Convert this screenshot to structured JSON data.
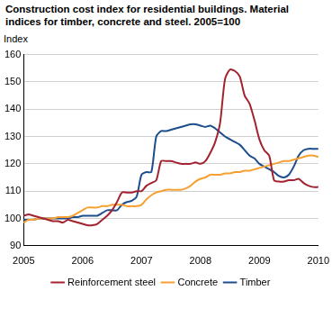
{
  "chart_data": {
    "type": "line",
    "title": "Construction cost index for residential buildings. Material indices for timber, concrete and steel. 2005=100",
    "y_label": "Index",
    "categories": [
      "2005",
      null,
      null,
      null,
      null,
      null,
      null,
      null,
      null,
      null,
      null,
      null,
      "2006",
      null,
      null,
      null,
      null,
      null,
      null,
      null,
      null,
      null,
      null,
      null,
      "2007",
      null,
      null,
      null,
      null,
      null,
      null,
      null,
      null,
      null,
      null,
      null,
      "2008",
      null,
      null,
      null,
      null,
      null,
      null,
      null,
      null,
      null,
      null,
      null,
      "2009",
      null,
      null,
      null,
      null,
      null,
      null,
      null,
      null,
      null,
      null,
      null,
      "2010"
    ],
    "series": [
      {
        "name": "Reinforcement steel",
        "color": "#a3222f",
        "values": [
          101,
          101.5,
          101,
          100.5,
          100,
          99.5,
          99,
          99,
          98.5,
          99.5,
          99,
          98.5,
          98,
          97.5,
          97.5,
          98,
          99.5,
          101,
          103,
          106,
          109.5,
          109.5,
          109.5,
          110,
          110,
          112,
          113,
          114,
          121,
          121,
          121,
          120.5,
          120,
          120,
          120,
          120.5,
          120,
          121,
          124,
          128,
          135,
          151,
          154.5,
          154,
          152,
          145,
          142,
          136,
          129,
          125,
          123,
          114,
          113.5,
          113.5,
          114,
          114,
          114.5,
          113,
          112,
          111.5,
          111.5
        ]
      },
      {
        "name": "Concrete",
        "color": "#f5a030",
        "values": [
          98.5,
          99.5,
          99.5,
          100,
          100,
          100,
          100,
          100.5,
          100.5,
          100.5,
          101,
          102,
          103,
          104,
          104,
          104,
          104.5,
          104.5,
          105,
          105,
          105,
          104.5,
          104.5,
          104.5,
          105,
          107,
          108.5,
          109.5,
          110,
          110.5,
          110.5,
          110.5,
          110.5,
          111,
          112,
          113.5,
          114.5,
          115,
          116,
          116,
          116,
          116.5,
          116.5,
          117,
          117,
          117.5,
          117.5,
          118,
          118.5,
          119,
          119.5,
          120,
          120.5,
          121,
          121,
          121.5,
          122,
          122.5,
          123,
          123,
          122.5
        ]
      },
      {
        "name": "Timber",
        "color": "#1c4d8c",
        "values": [
          99.5,
          99.5,
          99.5,
          100,
          100,
          100,
          100,
          100,
          100,
          100,
          100.5,
          100.5,
          101,
          101,
          101,
          101,
          102,
          103,
          103,
          103,
          105,
          106,
          106.5,
          108,
          116,
          117,
          117,
          130,
          132,
          132,
          132.5,
          133,
          133.5,
          134,
          134.5,
          134.5,
          134,
          133.5,
          134,
          133,
          131.5,
          130,
          129,
          128,
          127,
          125,
          123,
          122,
          120,
          119,
          118,
          117,
          115.5,
          115,
          116,
          119,
          123,
          125,
          125.5,
          125.5,
          125.5
        ]
      }
    ],
    "ylim": [
      90,
      160
    ],
    "yticks": [
      90,
      100,
      110,
      120,
      130,
      140,
      150,
      160
    ],
    "grid": true,
    "legend": "bottom"
  }
}
